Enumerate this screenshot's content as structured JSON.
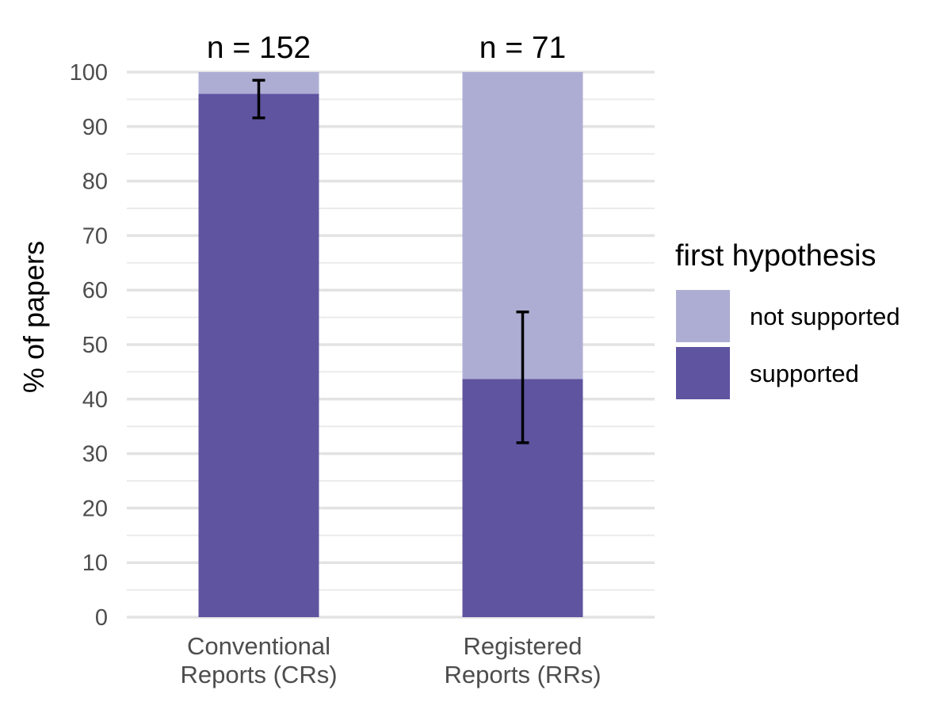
{
  "chart_data": {
    "type": "bar",
    "stacked": true,
    "categories": [
      [
        "Conventional",
        "Reports (CRs)"
      ],
      [
        "Registered",
        "Reports (RRs)"
      ]
    ],
    "n_labels": [
      "n = 152",
      "n = 71"
    ],
    "series": [
      {
        "name": "supported",
        "values": [
          96,
          43.7
        ],
        "color": "#5f54a0"
      },
      {
        "name": "not supported",
        "values": [
          4,
          56.3
        ],
        "color": "#adadd4"
      }
    ],
    "error_bars": [
      {
        "low": 91.6,
        "high": 98.5
      },
      {
        "low": 32,
        "high": 56
      }
    ],
    "ylabel": "% of papers",
    "xlabel": "",
    "ylim": [
      0,
      100
    ],
    "yticks": [
      0,
      10,
      20,
      30,
      40,
      50,
      60,
      70,
      80,
      90,
      100
    ],
    "grid": true,
    "legend": {
      "title": "first hypothesis",
      "placement": "right",
      "entries": [
        "not supported",
        "supported"
      ]
    }
  }
}
